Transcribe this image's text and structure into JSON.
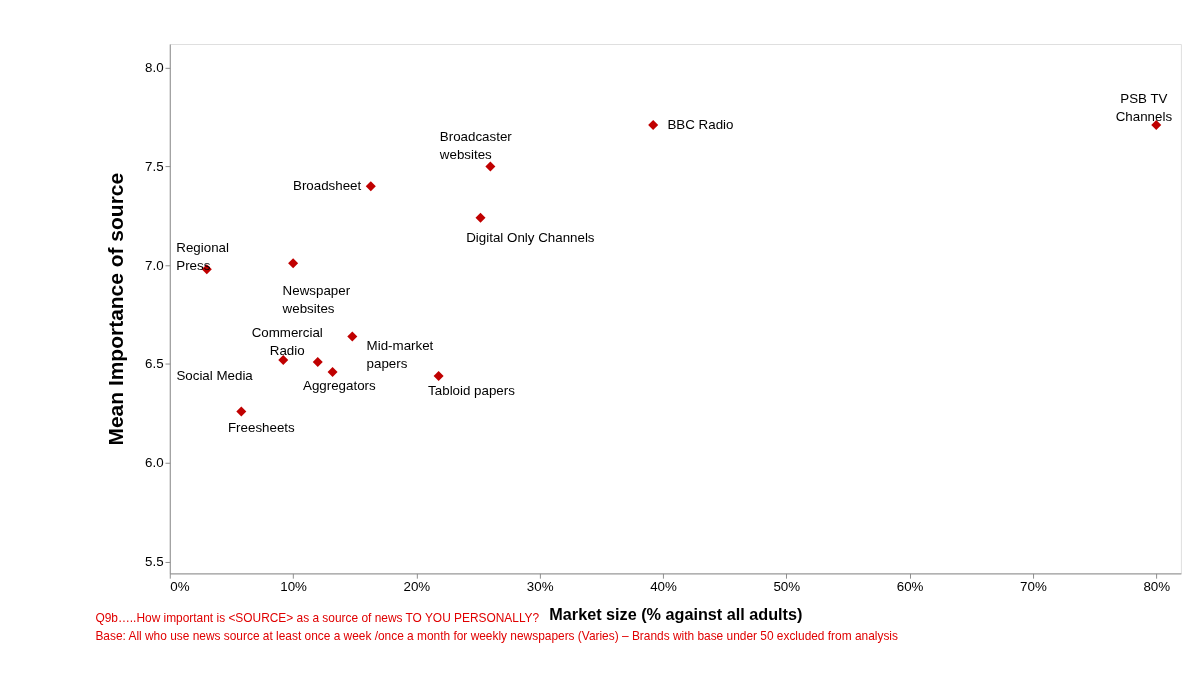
{
  "chart_data": {
    "type": "scatter",
    "xlabel": "Market size (% against all adults)",
    "ylabel": "Mean Importance of source",
    "x": [
      3,
      10,
      16.3,
      26.0,
      25.2,
      39.2,
      80.0,
      9.2,
      12.0,
      13.2,
      14.8,
      21.8,
      5.8
    ],
    "series": [
      {
        "color": "#c00000",
        "values": [
          6.98,
          7.01,
          7.4,
          7.5,
          7.24,
          7.71,
          7.71,
          6.52,
          6.51,
          6.46,
          6.64,
          6.44,
          6.26
        ]
      }
    ],
    "marker": "diamond",
    "xlim": [
      0,
      82
    ],
    "ylim": [
      5.44,
      8.12
    ],
    "xticks": [
      {
        "value": 0,
        "label": "0%"
      },
      {
        "value": 10,
        "label": "10%"
      },
      {
        "value": 20,
        "label": "20%"
      },
      {
        "value": 30,
        "label": "30%"
      },
      {
        "value": 40,
        "label": "40%"
      },
      {
        "value": 50,
        "label": "50%"
      },
      {
        "value": 60,
        "label": "60%"
      },
      {
        "value": 70,
        "label": "70%"
      },
      {
        "value": 80,
        "label": "80%"
      }
    ],
    "yticks": [
      5.5,
      {
        "value": 6,
        "label": "6.0"
      },
      6.5,
      {
        "value": 7,
        "label": "7.0"
      },
      7.5,
      {
        "value": 8,
        "label": "8.0"
      }
    ],
    "grid": false,
    "annotations": [
      {
        "text": "Regional Press",
        "x": 3,
        "y": 6.98
      },
      {
        "text": "Newspaper websites",
        "x": 10,
        "y": 7.01
      },
      {
        "text": "Broadsheet",
        "x": 16.3,
        "y": 7.4
      },
      {
        "text": "Broadcaster websites",
        "x": 26.0,
        "y": 7.5
      },
      {
        "text": "Digital Only Channels",
        "x": 25.2,
        "y": 7.24
      },
      {
        "text": "BBC Radio",
        "x": 39.2,
        "y": 7.71
      },
      {
        "text": "PSB TV Channels",
        "x": 80.0,
        "y": 7.71
      },
      {
        "text": "Social Media",
        "x": 9.2,
        "y": 6.52
      },
      {
        "text": "Commercial Radio",
        "x": 12.0,
        "y": 6.51
      },
      {
        "text": "Aggregators",
        "x": 13.2,
        "y": 6.46
      },
      {
        "text": "Mid-market papers",
        "x": 14.8,
        "y": 6.64
      },
      {
        "text": "Tabloid papers",
        "x": 21.8,
        "y": 6.44
      },
      {
        "text": "Freesheets",
        "x": 5.8,
        "y": 6.26
      },
      "Q9b…..How important is <SOURCE> as a source of news  TO YOU PERSONALLY?",
      "Base: All who use news source at least once a week /once a month for weekly newspapers  (Varies) – Brands with base under 50 excluded from analysis"
    ]
  }
}
